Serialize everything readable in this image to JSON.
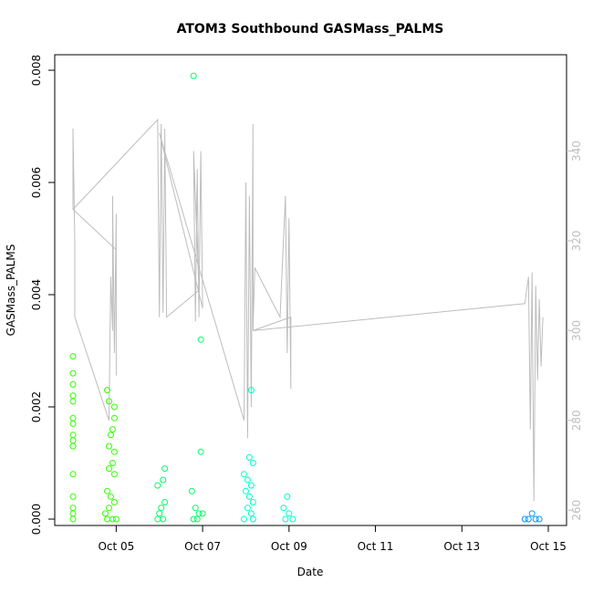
{
  "chart_data": {
    "type": "scatter",
    "title": "ATOM3 Southbound GASMass_PALMS",
    "xlabel": "Date",
    "ylabel": "GASMass_PALMS",
    "x_range_days": [
      "2017-10-04T00:00",
      "2017-10-15T00:00"
    ],
    "x_ticks": [
      {
        "label": "Oct 05",
        "x": "2017-10-05"
      },
      {
        "label": "Oct 07",
        "x": "2017-10-07"
      },
      {
        "label": "Oct 09",
        "x": "2017-10-09"
      },
      {
        "label": "Oct 11",
        "x": "2017-10-11"
      },
      {
        "label": "Oct 13",
        "x": "2017-10-13"
      },
      {
        "label": "Oct 15",
        "x": "2017-10-15"
      }
    ],
    "ylim": [
      0,
      0.008
    ],
    "y_ticks": [
      "0.000",
      "0.002",
      "0.004",
      "0.006",
      "0.008"
    ],
    "y2_range": [
      258,
      358
    ],
    "y2_ticks": [
      "260",
      "280",
      "300",
      "320",
      "340"
    ],
    "grid": false,
    "legend": "none",
    "colors": {
      "series_palette": [
        "#33ff00",
        "#00ff66",
        "#00ffcc",
        "#0099ff"
      ],
      "secondary_line": "#bdbdbd"
    },
    "series": [
      {
        "color": "#33ff00",
        "points": [
          [
            "2017-10-04T00:00",
            0.0029
          ],
          [
            "2017-10-04T00:00",
            0.0026
          ],
          [
            "2017-10-04T00:00",
            0.0024
          ],
          [
            "2017-10-04T00:00",
            0.0022
          ],
          [
            "2017-10-04T00:00",
            0.0021
          ],
          [
            "2017-10-04T00:00",
            0.0018
          ],
          [
            "2017-10-04T00:00",
            0.0017
          ],
          [
            "2017-10-04T00:00",
            0.0015
          ],
          [
            "2017-10-04T00:00",
            0.0014
          ],
          [
            "2017-10-04T00:00",
            0.0013
          ],
          [
            "2017-10-04T00:00",
            0.0008
          ],
          [
            "2017-10-04T00:00",
            0.0004
          ],
          [
            "2017-10-04T00:00",
            0.0002
          ],
          [
            "2017-10-04T00:00",
            0.0001
          ],
          [
            "2017-10-04T00:00",
            0.0
          ],
          [
            "2017-10-04T19:00",
            0.0023
          ],
          [
            "2017-10-04T20:00",
            0.0021
          ],
          [
            "2017-10-04T23:00",
            0.002
          ],
          [
            "2017-10-04T23:00",
            0.0018
          ],
          [
            "2017-10-04T22:00",
            0.0016
          ],
          [
            "2017-10-04T21:00",
            0.0015
          ],
          [
            "2017-10-04T20:00",
            0.0013
          ],
          [
            "2017-10-04T23:00",
            0.0012
          ],
          [
            "2017-10-04T22:00",
            0.001
          ],
          [
            "2017-10-04T20:00",
            0.0009
          ],
          [
            "2017-10-04T23:00",
            0.0008
          ],
          [
            "2017-10-04T19:00",
            0.0005
          ],
          [
            "2017-10-04T21:00",
            0.0004
          ],
          [
            "2017-10-04T23:00",
            0.0003
          ],
          [
            "2017-10-04T20:00",
            0.0002
          ],
          [
            "2017-10-04T18:00",
            0.0001
          ],
          [
            "2017-10-04T19:00",
            0.0
          ],
          [
            "2017-10-04T22:00",
            0.0
          ],
          [
            "2017-10-05T00:00",
            0.0
          ]
        ]
      },
      {
        "color": "#00ff66",
        "points": [
          [
            "2017-10-05T23:00",
            0.0006
          ],
          [
            "2017-10-06T03:00",
            0.0009
          ],
          [
            "2017-10-06T02:00",
            0.0007
          ],
          [
            "2017-10-06T03:00",
            0.0003
          ],
          [
            "2017-10-06T01:00",
            0.0002
          ],
          [
            "2017-10-06T00:00",
            0.0001
          ],
          [
            "2017-10-06T02:00",
            0.0
          ],
          [
            "2017-10-05T23:00",
            0.0
          ],
          [
            "2017-10-06T19:00",
            0.0079
          ],
          [
            "2017-10-06T23:00",
            0.0032
          ],
          [
            "2017-10-06T23:00",
            0.0012
          ],
          [
            "2017-10-06T18:00",
            0.0005
          ],
          [
            "2017-10-06T20:00",
            0.0002
          ],
          [
            "2017-10-06T22:00",
            0.0001
          ],
          [
            "2017-10-07T00:00",
            0.0001
          ],
          [
            "2017-10-06T21:00",
            0.0
          ],
          [
            "2017-10-06T19:00",
            0.0
          ]
        ]
      },
      {
        "color": "#00ffcc",
        "points": [
          [
            "2017-10-08T03:00",
            0.0023
          ],
          [
            "2017-10-08T02:00",
            0.0011
          ],
          [
            "2017-10-08T04:00",
            0.001
          ],
          [
            "2017-10-07T23:00",
            0.0008
          ],
          [
            "2017-10-08T01:00",
            0.0007
          ],
          [
            "2017-10-08T03:00",
            0.0006
          ],
          [
            "2017-10-08T00:00",
            0.0005
          ],
          [
            "2017-10-08T02:00",
            0.0004
          ],
          [
            "2017-10-08T04:00",
            0.0003
          ],
          [
            "2017-10-08T01:00",
            0.0002
          ],
          [
            "2017-10-08T03:00",
            0.0001
          ],
          [
            "2017-10-07T23:00",
            0.0
          ],
          [
            "2017-10-08T04:00",
            0.0
          ],
          [
            "2017-10-08T23:00",
            0.0004
          ],
          [
            "2017-10-08T21:00",
            0.0002
          ],
          [
            "2017-10-09T00:00",
            0.0001
          ],
          [
            "2017-10-08T22:00",
            0.0
          ],
          [
            "2017-10-09T02:00",
            0.0
          ]
        ]
      },
      {
        "color": "#0099ff",
        "points": [
          [
            "2017-10-14T11:00",
            0.0
          ],
          [
            "2017-10-14T13:00",
            0.0
          ],
          [
            "2017-10-14T15:00",
            0.0001
          ],
          [
            "2017-10-14T17:00",
            0.0
          ],
          [
            "2017-10-14T19:00",
            0.0
          ]
        ]
      }
    ],
    "secondary_line": [
      [
        "2017-10-04T00:00",
        327
      ],
      [
        "2017-10-04T00:00",
        345
      ],
      [
        "2017-10-04T01:00",
        320
      ],
      [
        "2017-10-04T01:00",
        303
      ],
      [
        "2017-10-04T20:00",
        280
      ],
      [
        "2017-10-04T21:00",
        312
      ],
      [
        "2017-10-04T22:00",
        300
      ],
      [
        "2017-10-04T22:00",
        330
      ],
      [
        "2017-10-04T23:00",
        295
      ],
      [
        "2017-10-05T00:00",
        326
      ],
      [
        "2017-10-05T00:00",
        290
      ],
      [
        "2017-10-05T00:00",
        318
      ],
      [
        "2017-10-04T00:00",
        327
      ],
      [
        "2017-10-05T23:00",
        347
      ],
      [
        "2017-10-06T00:00",
        303
      ],
      [
        "2017-10-06T01:00",
        346
      ],
      [
        "2017-10-06T02:00",
        304
      ],
      [
        "2017-10-06T03:00",
        343
      ],
      [
        "2017-10-06T03:00",
        345
      ],
      [
        "2017-10-06T04:00",
        303
      ],
      [
        "2017-10-06T22:00",
        309
      ],
      [
        "2017-10-06T19:00",
        340
      ],
      [
        "2017-10-06T20:00",
        302
      ],
      [
        "2017-10-06T21:00",
        336
      ],
      [
        "2017-10-06T22:00",
        303
      ],
      [
        "2017-10-06T23:00",
        340
      ],
      [
        "2017-10-07T00:00",
        305
      ],
      [
        "2017-10-06T00:00",
        344
      ],
      [
        "2017-10-07T23:00",
        280
      ],
      [
        "2017-10-08T00:00",
        333
      ],
      [
        "2017-10-08T01:00",
        276
      ],
      [
        "2017-10-08T02:00",
        330
      ],
      [
        "2017-10-08T03:00",
        283
      ],
      [
        "2017-10-08T04:00",
        346
      ],
      [
        "2017-10-08T04:00",
        300
      ],
      [
        "2017-10-08T05:00",
        314
      ],
      [
        "2017-10-08T19:00",
        303
      ],
      [
        "2017-10-08T21:00",
        321
      ],
      [
        "2017-10-08T22:00",
        330
      ],
      [
        "2017-10-08T23:00",
        295
      ],
      [
        "2017-10-09T00:00",
        325
      ],
      [
        "2017-10-09T01:00",
        287
      ],
      [
        "2017-10-09T01:00",
        303
      ],
      [
        "2017-10-08T04:00",
        300
      ],
      [
        "2017-10-14T11:00",
        306
      ],
      [
        "2017-10-14T13:00",
        312
      ],
      [
        "2017-10-14T14:00",
        278
      ],
      [
        "2017-10-14T15:00",
        313
      ],
      [
        "2017-10-14T16:00",
        262
      ],
      [
        "2017-10-14T17:00",
        310
      ],
      [
        "2017-10-14T18:00",
        289
      ],
      [
        "2017-10-14T19:00",
        307
      ],
      [
        "2017-10-14T20:00",
        292
      ],
      [
        "2017-10-14T21:00",
        303
      ]
    ]
  }
}
